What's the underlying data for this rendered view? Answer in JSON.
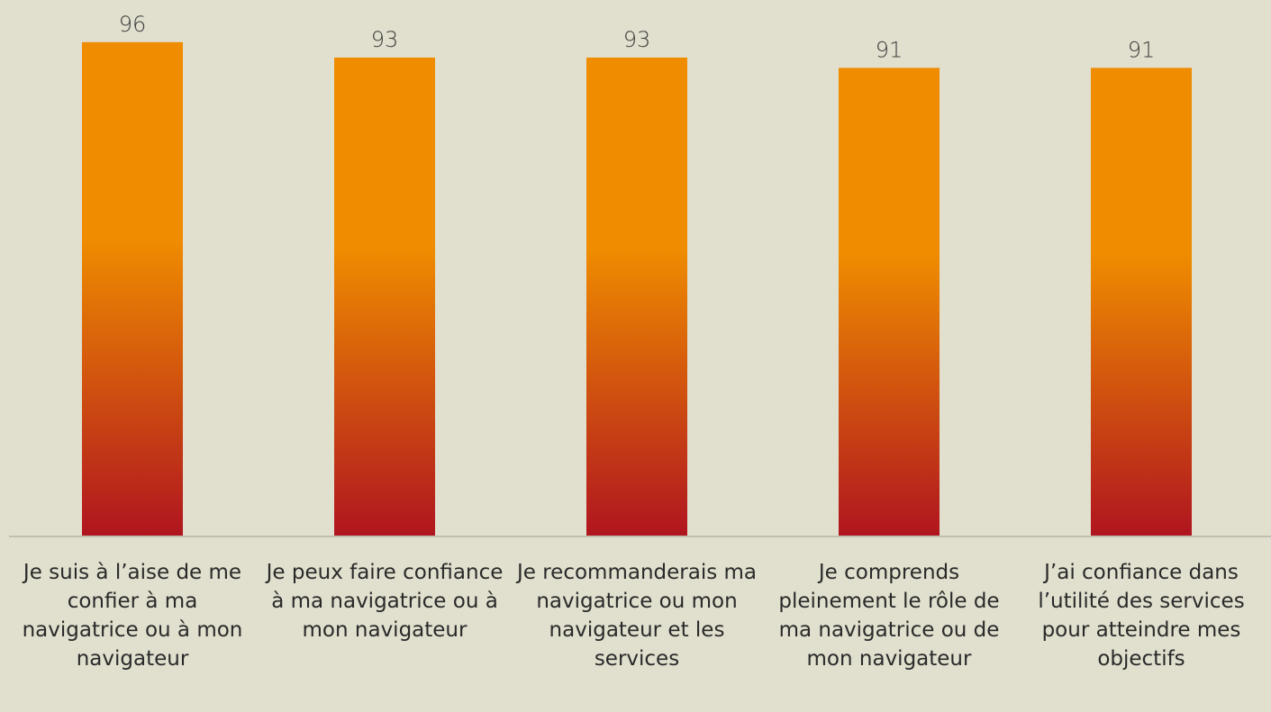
{
  "chart_data": {
    "type": "bar",
    "categories": [
      "Je suis à l’aise de me confier à ma navigatrice ou à mon navigateur",
      "Je peux faire confiance à ma navigatrice ou à mon navigateur",
      "Je recommanderais ma navigatrice ou mon navigateur et les services",
      "Je comprends pleinement le rôle de ma navigatrice ou de mon navigateur",
      "J’ai confiance dans l’utilité des services pour atteindre mes objectifs"
    ],
    "values": [
      96,
      93,
      93,
      91,
      91
    ],
    "colors": [
      "#ef8c00",
      "#b0151f"
    ],
    "ylim": [
      0,
      100
    ]
  }
}
